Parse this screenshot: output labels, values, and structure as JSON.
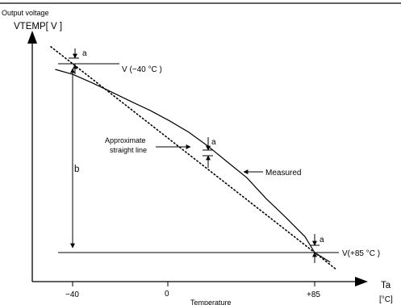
{
  "chart_data": {
    "type": "line",
    "y_axis_title": "Output voltage",
    "y_axis_symbol": "VTEMP[ V ]",
    "x_axis_symbol": "Ta",
    "x_axis_unit": "[°C]",
    "x_axis_caption": "Temperature",
    "x_ticks": [
      "−40",
      "0",
      "+85"
    ],
    "x_range": [
      -40,
      85
    ],
    "series": [
      {
        "name": "Measured",
        "style": "solid",
        "x": [
          -49,
          -40,
          -30,
          -20,
          -10,
          0,
          10,
          20,
          30,
          40,
          50,
          60,
          70,
          80,
          85,
          93
        ],
        "y": [
          0.97,
          0.944,
          0.899,
          0.851,
          0.801,
          0.753,
          0.698,
          0.637,
          0.563,
          0.479,
          0.396,
          0.285,
          0.187,
          0.084,
          0.0,
          -0.051
        ]
      },
      {
        "name": "Approximate straight line",
        "style": "dotted",
        "x": [
          -40,
          85
        ],
        "y": [
          1.0,
          0.0
        ]
      }
    ],
    "levels": {
      "v_minus_40": "V (−40 °C )",
      "v_plus_85": "V(+85 °C )"
    },
    "annotations": {
      "deviation_top": "a",
      "deviation_mid": "a",
      "deviation_bottom": "a",
      "span": "b",
      "measured_label": "Measured",
      "approx_label_line1": "Approximate",
      "approx_label_line2": "straight line"
    }
  }
}
